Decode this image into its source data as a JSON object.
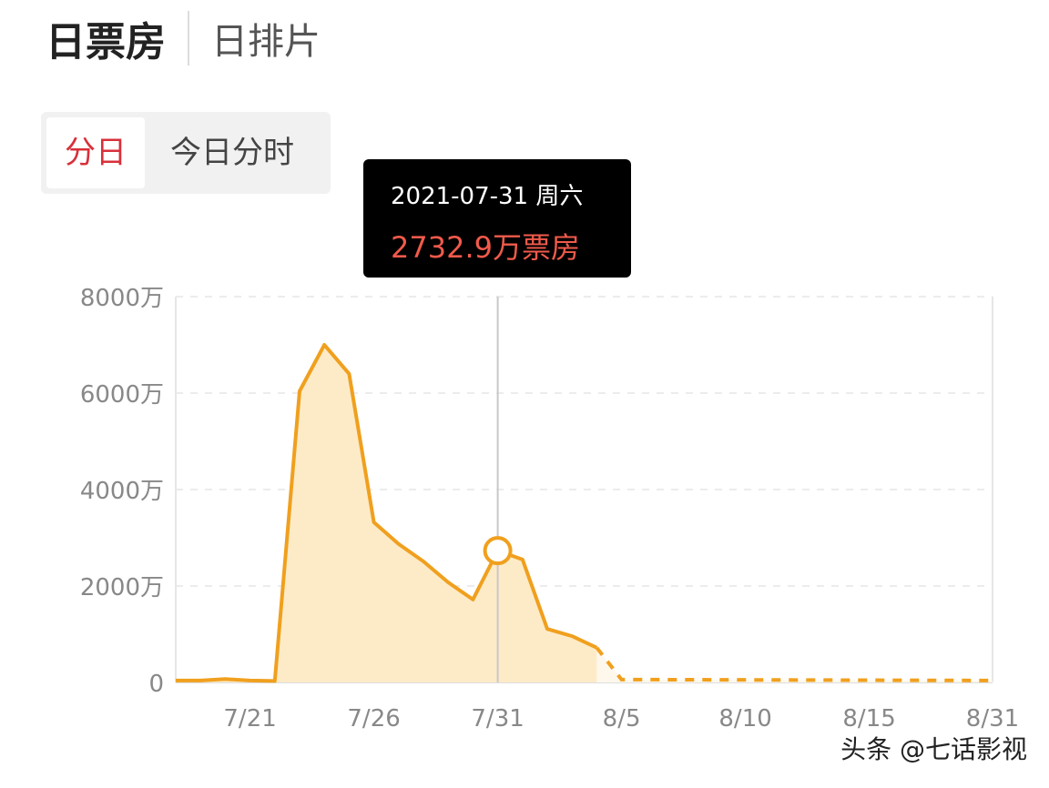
{
  "header": {
    "tab_active": "日票房",
    "tab_other": "日排片"
  },
  "segment": {
    "active": "分日",
    "other": "今日分时"
  },
  "tooltip": {
    "date": "2021-07-31 周六",
    "value": "2732.9万票房"
  },
  "watermark": "头条 @七话影视",
  "colors": {
    "line": "#f0a01e",
    "fill": "#fdebc8",
    "accent": "#d8303a",
    "tooltip_value": "#f05a4b"
  },
  "chart_data": {
    "type": "area",
    "title": "",
    "xlabel": "",
    "ylabel": "",
    "ylim": [
      0,
      8000
    ],
    "y_ticks": [
      "0",
      "2000万",
      "4000万",
      "6000万",
      "8000万"
    ],
    "y_tick_values": [
      0,
      2000,
      4000,
      6000,
      8000
    ],
    "x_ticks": [
      "7/21",
      "7/26",
      "7/31",
      "8/5",
      "8/10",
      "8/15",
      "8/31"
    ],
    "grid": true,
    "actual": {
      "x": [
        "7/18",
        "7/19",
        "7/20",
        "7/21",
        "7/22",
        "7/23",
        "7/24",
        "7/25",
        "7/26",
        "7/27",
        "7/28",
        "7/29",
        "7/30",
        "7/31",
        "8/1",
        "8/2",
        "8/3",
        "8/4"
      ],
      "values": [
        40,
        40,
        70,
        40,
        30,
        6040,
        7000,
        6400,
        3320,
        2870,
        2510,
        2075,
        1720,
        2732.9,
        2550,
        1110,
        960,
        720
      ]
    },
    "forecast_dashed": {
      "x": [
        "8/4",
        "8/5",
        "8/31"
      ],
      "values": [
        720,
        60,
        40
      ]
    },
    "highlight": {
      "x": "7/31",
      "value": 2732.9
    }
  }
}
